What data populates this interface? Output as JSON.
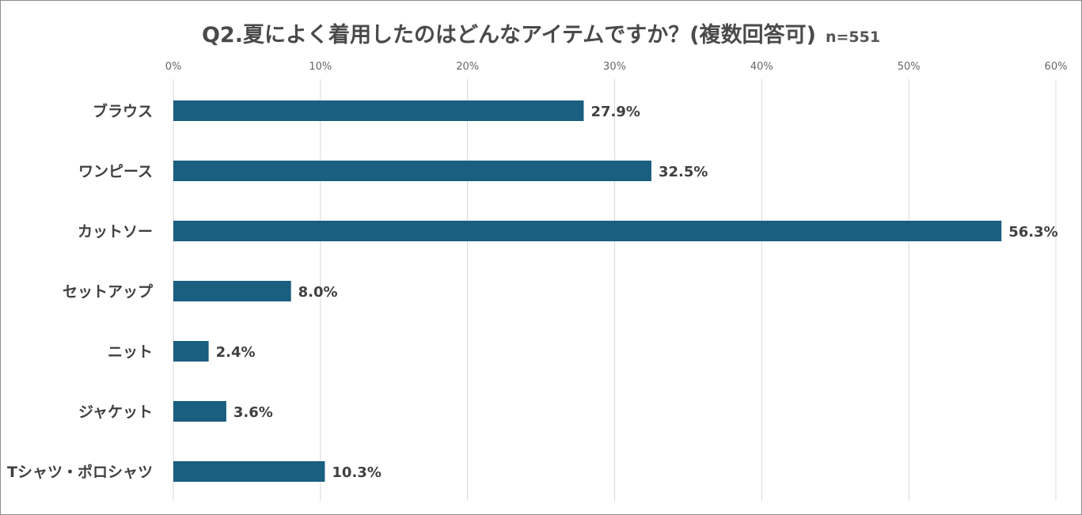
{
  "chart_data": {
    "type": "bar",
    "orientation": "horizontal",
    "title": "Q2.夏によく着用したのはどんなアイテムですか？(複数回答可)",
    "subtitle": "n=551",
    "categories": [
      "ブラウス",
      "ワンピース",
      "カットソー",
      "セットアップ",
      "ニット",
      "ジャケット",
      "Tシャツ・ポロシャツ"
    ],
    "values": [
      27.9,
      32.5,
      56.3,
      8.0,
      2.4,
      3.6,
      10.3
    ],
    "value_labels": [
      "27.9%",
      "32.5%",
      "56.3%",
      "8.0%",
      "2.4%",
      "3.6%",
      "10.3%"
    ],
    "ticks": [
      0,
      10,
      20,
      30,
      40,
      50,
      60
    ],
    "tick_labels": [
      "0%",
      "10%",
      "20%",
      "30%",
      "40%",
      "50%",
      "60%"
    ],
    "xlim": [
      0,
      60
    ],
    "xlabel": "",
    "ylabel": "",
    "grid": true,
    "axis_position": "top",
    "bar_color": "#1a5e80",
    "grid_color": "#d9d9d9"
  }
}
